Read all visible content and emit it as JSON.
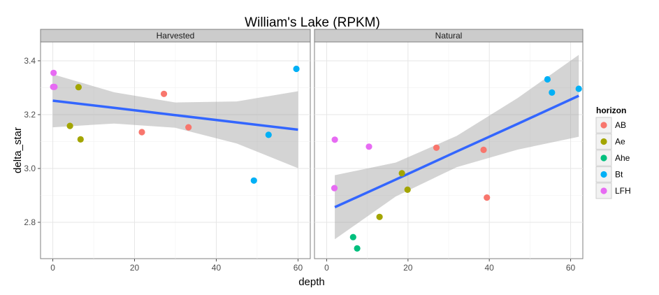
{
  "chart_data": {
    "type": "scatter",
    "title": "William's Lake (RPKM)",
    "xlabel": "depth",
    "ylabel": "delta_star",
    "xlim": [
      -3,
      63
    ],
    "ylim": [
      2.665,
      3.47
    ],
    "x_ticks": [
      0,
      20,
      40,
      60
    ],
    "y_ticks": [
      2.8,
      3.0,
      3.2,
      3.4
    ],
    "x_tick_labels": [
      "0",
      "20",
      "40",
      "60"
    ],
    "y_tick_labels": [
      "2.8",
      "3.0",
      "3.2",
      "3.4"
    ],
    "grid": true,
    "legend": {
      "title": "horizon",
      "position": "right",
      "entries": [
        {
          "name": "AB",
          "color": "#F8766D"
        },
        {
          "name": "Ae",
          "color": "#A3A500"
        },
        {
          "name": "Ahe",
          "color": "#00BF7D"
        },
        {
          "name": "Bt",
          "color": "#00B0F6"
        },
        {
          "name": "LFH",
          "color": "#E76BF3"
        }
      ]
    },
    "trend_color": "#3366FF",
    "band_color": "#999999",
    "panels": [
      {
        "label": "Harvested",
        "points": [
          {
            "x": 0.2,
            "y": 3.355,
            "horizon": "LFH"
          },
          {
            "x": 0.1,
            "y": 3.303,
            "horizon": "LFH"
          },
          {
            "x": 0.4,
            "y": 3.303,
            "horizon": "LFH"
          },
          {
            "x": 6.3,
            "y": 3.302,
            "horizon": "Ae"
          },
          {
            "x": 4.2,
            "y": 3.158,
            "horizon": "Ae"
          },
          {
            "x": 6.8,
            "y": 3.108,
            "horizon": "Ae"
          },
          {
            "x": 27.2,
            "y": 3.277,
            "horizon": "AB"
          },
          {
            "x": 21.8,
            "y": 3.135,
            "horizon": "AB"
          },
          {
            "x": 33.2,
            "y": 3.153,
            "horizon": "AB"
          },
          {
            "x": 59.6,
            "y": 3.37,
            "horizon": "Bt"
          },
          {
            "x": 52.8,
            "y": 3.125,
            "horizon": "Bt"
          },
          {
            "x": 49.2,
            "y": 2.955,
            "horizon": "Bt"
          }
        ],
        "fit": {
          "x": [
            0,
            15,
            30,
            45,
            60
          ],
          "y": [
            3.252,
            3.225,
            3.198,
            3.171,
            3.144
          ]
        },
        "band": {
          "x": [
            0,
            15,
            30,
            45,
            60
          ],
          "upper": [
            3.35,
            3.283,
            3.245,
            3.249,
            3.287
          ],
          "lower": [
            3.153,
            3.167,
            3.151,
            3.093,
            3.001
          ]
        }
      },
      {
        "label": "Natural",
        "points": [
          {
            "x": 2.0,
            "y": 3.107,
            "horizon": "LFH"
          },
          {
            "x": 1.9,
            "y": 2.927,
            "horizon": "LFH"
          },
          {
            "x": 10.4,
            "y": 3.081,
            "horizon": "LFH"
          },
          {
            "x": 18.5,
            "y": 2.982,
            "horizon": "Ae"
          },
          {
            "x": 19.9,
            "y": 2.921,
            "horizon": "Ae"
          },
          {
            "x": 13.0,
            "y": 2.82,
            "horizon": "Ae"
          },
          {
            "x": 6.5,
            "y": 2.745,
            "horizon": "Ahe"
          },
          {
            "x": 7.5,
            "y": 2.703,
            "horizon": "Ahe"
          },
          {
            "x": 27.0,
            "y": 3.077,
            "horizon": "AB"
          },
          {
            "x": 38.6,
            "y": 3.069,
            "horizon": "AB"
          },
          {
            "x": 39.4,
            "y": 2.892,
            "horizon": "AB"
          },
          {
            "x": 54.3,
            "y": 3.331,
            "horizon": "Bt"
          },
          {
            "x": 55.4,
            "y": 3.282,
            "horizon": "Bt"
          },
          {
            "x": 62.0,
            "y": 3.296,
            "horizon": "Bt"
          }
        ],
        "fit": {
          "x": [
            2,
            17,
            32,
            47,
            62
          ],
          "y": [
            2.856,
            2.959,
            3.063,
            3.166,
            3.27
          ]
        },
        "band": {
          "x": [
            2,
            17,
            32,
            47,
            62
          ],
          "upper": [
            2.975,
            3.022,
            3.121,
            3.262,
            3.422
          ],
          "lower": [
            2.737,
            2.896,
            3.005,
            3.07,
            3.118
          ]
        }
      }
    ]
  }
}
